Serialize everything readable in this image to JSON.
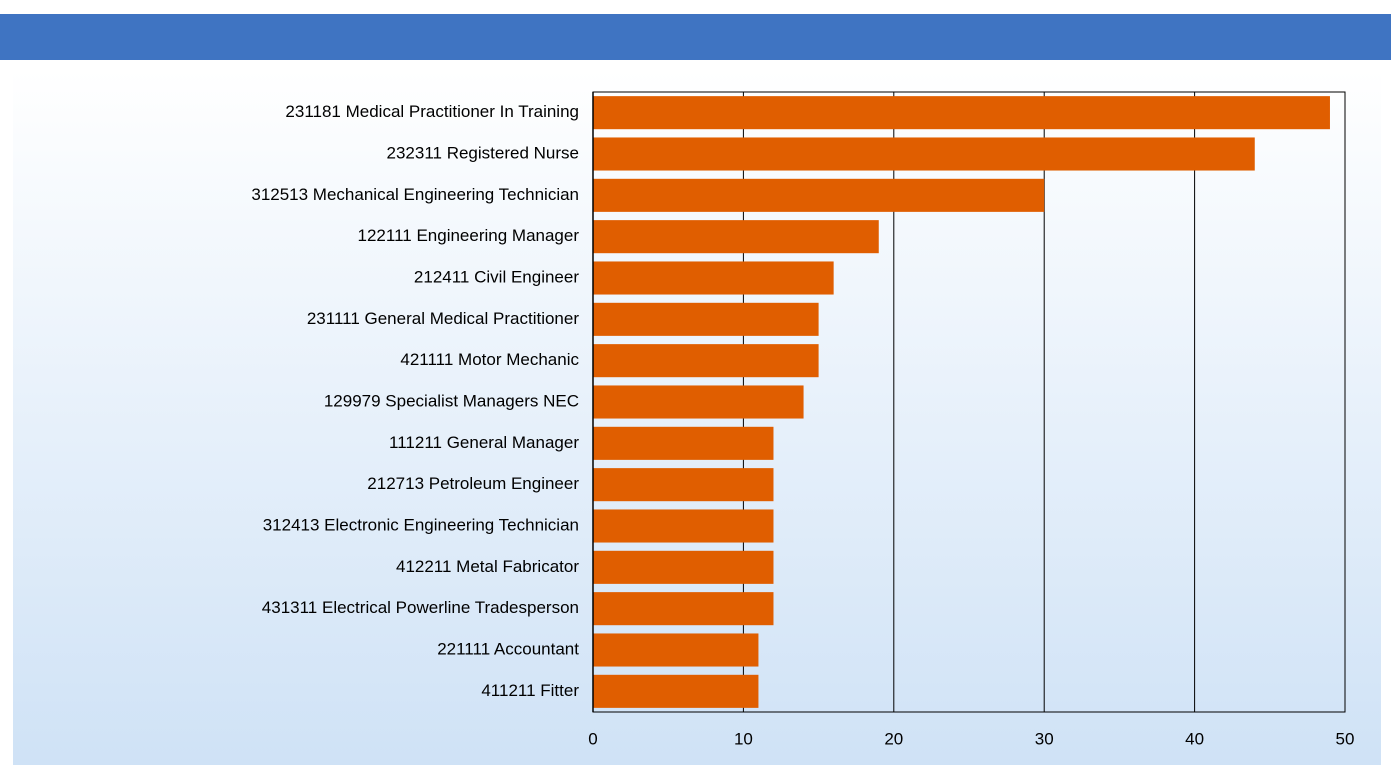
{
  "chart_data": {
    "type": "bar",
    "orientation": "horizontal",
    "categories": [
      "231181 Medical Practitioner In Training",
      "232311 Registered Nurse",
      "312513 Mechanical Engineering Technician",
      "122111 Engineering Manager",
      "212411 Civil Engineer",
      "231111 General Medical Practitioner",
      "421111 Motor Mechanic",
      "129979 Specialist Managers NEC",
      "111211 General Manager",
      "212713 Petroleum Engineer",
      "312413 Electronic Engineering Technician",
      "412211 Metal Fabricator",
      "431311 Electrical Powerline Tradesperson",
      "221111 Accountant",
      "411211 Fitter"
    ],
    "values": [
      49,
      44,
      30,
      19,
      16,
      15,
      15,
      14,
      12,
      12,
      12,
      12,
      12,
      11,
      11
    ],
    "color": "#e05e00",
    "xlim": [
      0,
      50
    ],
    "xticks": [
      0,
      10,
      20,
      30,
      40,
      50
    ],
    "grid": true
  }
}
